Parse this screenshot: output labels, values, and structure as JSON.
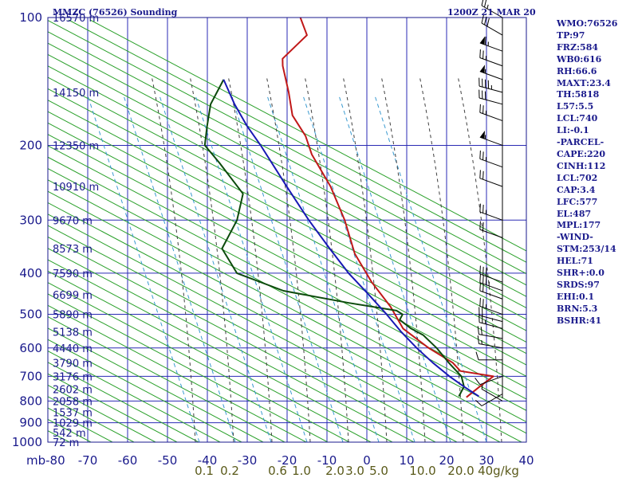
{
  "header": {
    "station_title": "MMZC (76526) Sounding",
    "time": "1200Z 21 MAR 20"
  },
  "stats": [
    "WMO:76526",
    "TP:97",
    "FRZ:584",
    "WB0:616",
    "RH:66.6",
    "MAXT:23.4",
    "TH:5818",
    "L57:5.5",
    "LCL:740",
    "LI:-0.1",
    "-PARCEL-",
    "CAPE:220",
    "CINH:112",
    "LCL:702",
    "CAP:3.4",
    "LFC:577",
    "EL:487",
    "MPL:177",
    "-WIND-",
    "STM:253/14",
    "HEL:71",
    "SHR+:0.0",
    "SRDS:97",
    "EHI:0.1",
    "BRN:5.3",
    "BSHR:41"
  ],
  "colors": {
    "frame": "#1a1a8c",
    "isotherm": "#2a2ab4",
    "dry_adiabat": "#2aa02a",
    "moist_adiabat": "#404040",
    "mixing_ratio": "#3a9ad0",
    "temperature": "#c01818",
    "dewpoint": "#0c4a0c",
    "parcel": "#1818b4",
    "wind_barb": "#000000"
  },
  "chart_data": {
    "type": "line",
    "subtype": "skew-t log-p sounding",
    "y_unit_label": "mb",
    "pressure_ticks": [
      100,
      200,
      300,
      400,
      500,
      600,
      700,
      800,
      900,
      1000
    ],
    "temperature_ticks": [
      -80,
      -70,
      -60,
      -50,
      -40,
      -30,
      -20,
      -10,
      0,
      10,
      20,
      30,
      40
    ],
    "temperature_tick_labels": [
      "mb-80",
      "-70",
      "-60",
      "-50",
      "-40",
      "-30",
      "-20",
      "-10",
      "0",
      "10",
      "20",
      "30",
      "40"
    ],
    "mixing_ratio_ticks": [
      "0.1",
      "0.2",
      "0.6",
      "1.0",
      "2.0",
      "3.0",
      "5.0",
      "10.0",
      "20.0",
      "40g/kg"
    ],
    "height_labels": [
      {
        "p": 100,
        "text": "16570 m"
      },
      {
        "p": 150,
        "text": "14150 m"
      },
      {
        "p": 200,
        "text": "12350 m"
      },
      {
        "p": 250,
        "text": "10910 m"
      },
      {
        "p": 300,
        "text": "9670 m"
      },
      {
        "p": 350,
        "text": "8573 m"
      },
      {
        "p": 400,
        "text": "7590 m"
      },
      {
        "p": 450,
        "text": "6699 m"
      },
      {
        "p": 500,
        "text": "5890 m"
      },
      {
        "p": 550,
        "text": "5138 m"
      },
      {
        "p": 600,
        "text": "4440 m"
      },
      {
        "p": 650,
        "text": "3790 m"
      },
      {
        "p": 700,
        "text": "3176 m"
      },
      {
        "p": 750,
        "text": "2602 m"
      },
      {
        "p": 800,
        "text": "2058 m"
      },
      {
        "p": 850,
        "text": "1537 m"
      },
      {
        "p": 900,
        "text": "1029 m"
      },
      {
        "p": 950,
        "text": "542 m"
      },
      {
        "p": 1000,
        "text": "72 m"
      }
    ],
    "series": [
      {
        "points": [
          [
            784,
            19
          ],
          [
            738,
            21
          ],
          [
            700,
            23
          ],
          [
            680,
            14
          ],
          [
            650,
            11
          ],
          [
            600,
            3
          ],
          [
            540,
            -6
          ],
          [
            480,
            -12
          ],
          [
            420,
            -20
          ],
          [
            360,
            -28
          ],
          [
            300,
            -35
          ],
          [
            250,
            -43
          ],
          [
            210,
            -52
          ],
          [
            190,
            -56
          ],
          [
            170,
            -62
          ],
          [
            150,
            -66
          ],
          [
            130,
            -71
          ],
          [
            125,
            -72
          ],
          [
            110,
            -69
          ],
          [
            100,
            -73
          ]
        ]
      },
      {
        "points": [
          [
            780,
            17
          ],
          [
            740,
            17
          ],
          [
            700,
            15
          ],
          [
            650,
            10
          ],
          [
            600,
            5
          ],
          [
            560,
            0
          ],
          [
            540,
            -4
          ],
          [
            515,
            -8
          ],
          [
            500,
            -8
          ],
          [
            490,
            -10
          ],
          [
            470,
            -23
          ],
          [
            440,
            -41
          ],
          [
            400,
            -55
          ],
          [
            350,
            -62
          ],
          [
            300,
            -62
          ],
          [
            260,
            -64
          ],
          [
            220,
            -74
          ],
          [
            200,
            -80
          ],
          [
            180,
            -82
          ],
          [
            160,
            -84
          ],
          [
            140,
            -84
          ]
        ]
      },
      {
        "points": [
          [
            780,
            22
          ],
          [
            740,
            17
          ],
          [
            700,
            12
          ],
          [
            650,
            6
          ],
          [
            600,
            0
          ],
          [
            550,
            -6
          ],
          [
            500,
            -12
          ],
          [
            450,
            -19
          ],
          [
            400,
            -27
          ],
          [
            350,
            -35
          ],
          [
            300,
            -44
          ],
          [
            250,
            -54
          ],
          [
            200,
            -66
          ],
          [
            180,
            -72
          ],
          [
            160,
            -78
          ],
          [
            140,
            -84
          ]
        ]
      }
    ],
    "wind_barbs": [
      {
        "p": 100,
        "dir": 300,
        "spd": 25
      },
      {
        "p": 110,
        "dir": 300,
        "spd": 30
      },
      {
        "p": 120,
        "dir": 290,
        "spd": 65
      },
      {
        "p": 130,
        "dir": 290,
        "spd": 25
      },
      {
        "p": 140,
        "dir": 290,
        "spd": 55
      },
      {
        "p": 150,
        "dir": 285,
        "spd": 45
      },
      {
        "p": 160,
        "dir": 285,
        "spd": 30
      },
      {
        "p": 175,
        "dir": 290,
        "spd": 25
      },
      {
        "p": 200,
        "dir": 290,
        "spd": 55
      },
      {
        "p": 225,
        "dir": 290,
        "spd": 25
      },
      {
        "p": 250,
        "dir": 290,
        "spd": 20
      },
      {
        "p": 300,
        "dir": 290,
        "spd": 25
      },
      {
        "p": 330,
        "dir": 290,
        "spd": 20
      },
      {
        "p": 420,
        "dir": 290,
        "spd": 30
      },
      {
        "p": 440,
        "dir": 290,
        "spd": 35
      },
      {
        "p": 460,
        "dir": 290,
        "spd": 20
      },
      {
        "p": 500,
        "dir": 290,
        "spd": 25
      },
      {
        "p": 520,
        "dir": 285,
        "spd": 20
      },
      {
        "p": 540,
        "dir": 285,
        "spd": 25
      },
      {
        "p": 570,
        "dir": 280,
        "spd": 20
      },
      {
        "p": 600,
        "dir": 280,
        "spd": 15
      },
      {
        "p": 640,
        "dir": 270,
        "spd": 10
      },
      {
        "p": 700,
        "dir": 250,
        "spd": 10
      },
      {
        "p": 770,
        "dir": 240,
        "spd": 10
      },
      {
        "p": 800,
        "dir": 300,
        "spd": 5
      }
    ]
  }
}
